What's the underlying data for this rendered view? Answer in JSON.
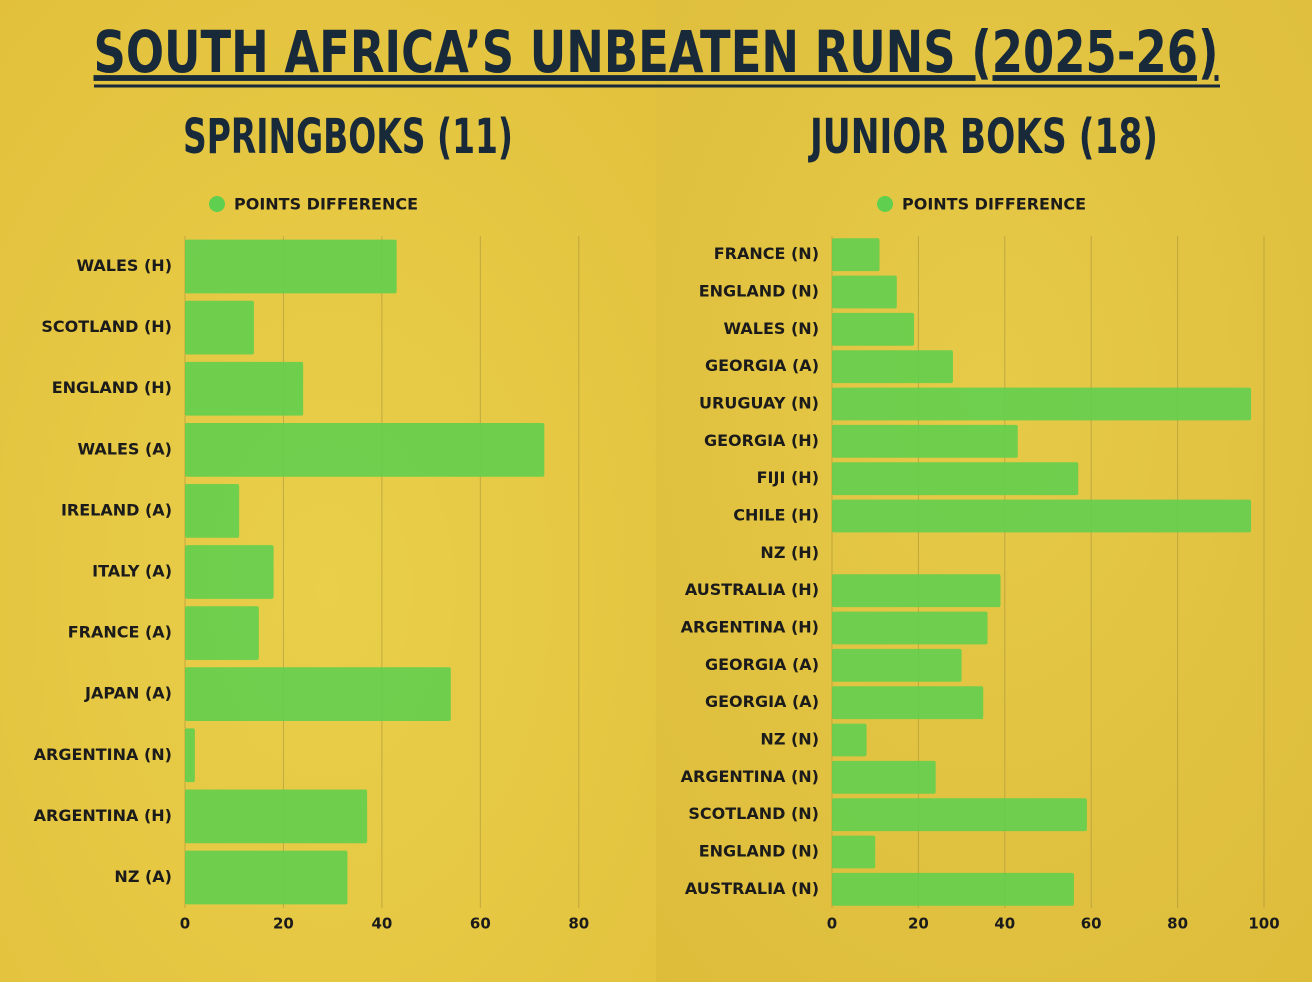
{
  "title": "SOUTH AFRICA’S UNBEATEN RUNS (2025-26)",
  "chart_data": [
    {
      "type": "bar",
      "orientation": "horizontal",
      "title": "SPRINGBOKS (11)",
      "categories": [
        "WALES (H)",
        "SCOTLAND (H)",
        "ENGLAND (H)",
        "WALES (A)",
        "IRELAND (A)",
        "ITALY (A)",
        "FRANCE (A)",
        "JAPAN (A)",
        "ARGENTINA (N)",
        "ARGENTINA (H)",
        "NZ (A)"
      ],
      "series": [
        {
          "name": "POINTS DIFFERENCE",
          "color": "#5fcf4f",
          "values": [
            43,
            14,
            24,
            73,
            11,
            18,
            15,
            54,
            2,
            37,
            33
          ]
        }
      ],
      "xlim": [
        0,
        90
      ],
      "xticks": [
        0,
        20,
        40,
        60,
        80
      ],
      "grid": true
    },
    {
      "type": "bar",
      "orientation": "horizontal",
      "title": "JUNIOR BOKS (18)",
      "categories": [
        "FRANCE (N)",
        "ENGLAND (N)",
        "WALES (N)",
        "GEORGIA (A)",
        "URUGUAY (N)",
        "GEORGIA (H)",
        "FIJI (H)",
        "CHILE (H)",
        "NZ (H)",
        "AUSTRALIA (H)",
        "ARGENTINA (H)",
        "GEORGIA (A)",
        "GEORGIA (A)",
        "NZ (N)",
        "ARGENTINA (N)",
        "SCOTLAND (N)",
        "ENGLAND (N)",
        "AUSTRALIA (N)"
      ],
      "series": [
        {
          "name": "POINTS DIFFERENCE",
          "color": "#5fcf4f",
          "values": [
            11,
            15,
            19,
            28,
            97,
            43,
            57,
            97,
            0,
            39,
            36,
            30,
            35,
            8,
            24,
            59,
            10,
            56
          ]
        }
      ],
      "xlim": [
        0,
        100
      ],
      "xticks": [
        0,
        20,
        40,
        60,
        80,
        100
      ],
      "grid": true
    }
  ]
}
